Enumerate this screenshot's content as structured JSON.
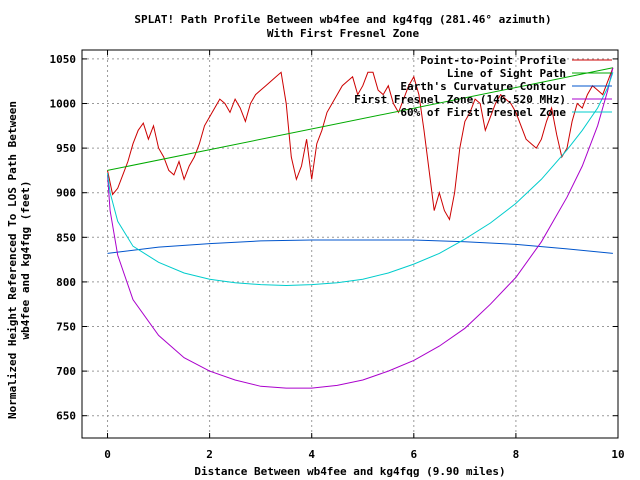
{
  "chart_data": {
    "type": "line",
    "title_line1": "SPLAT! Path Profile Between wb4fee and kg4fqg (281.46° azimuth)",
    "title_line2": "With First Fresnel Zone",
    "xlabel": "Distance Between wb4fee and kg4fqg (9.90 miles)",
    "ylabel_line1": "Normalized Height Referenced To LOS Path Between",
    "ylabel_line2": "wb4fee and kg4fqg (feet)",
    "xlim": [
      -0.5,
      10
    ],
    "ylim": [
      625,
      1060
    ],
    "x_ticks": [
      0,
      2,
      4,
      6,
      8,
      10
    ],
    "y_ticks": [
      650,
      700,
      750,
      800,
      850,
      900,
      950,
      1000,
      1050
    ],
    "grid": true,
    "legend_position": "top-right",
    "series": [
      {
        "name": "Point-to-Point Profile",
        "color": "#cc0000",
        "x": [
          0.0,
          0.1,
          0.2,
          0.3,
          0.4,
          0.5,
          0.6,
          0.7,
          0.8,
          0.9,
          1.0,
          1.1,
          1.2,
          1.3,
          1.4,
          1.5,
          1.6,
          1.7,
          1.8,
          1.9,
          2.0,
          2.1,
          2.2,
          2.3,
          2.4,
          2.5,
          2.6,
          2.7,
          2.8,
          2.9,
          3.0,
          3.1,
          3.2,
          3.3,
          3.4,
          3.5,
          3.6,
          3.7,
          3.8,
          3.9,
          4.0,
          4.1,
          4.2,
          4.3,
          4.4,
          4.5,
          4.6,
          4.7,
          4.8,
          4.9,
          5.0,
          5.1,
          5.2,
          5.3,
          5.4,
          5.5,
          5.6,
          5.7,
          5.8,
          5.9,
          6.0,
          6.1,
          6.2,
          6.3,
          6.4,
          6.5,
          6.6,
          6.7,
          6.8,
          6.9,
          7.0,
          7.1,
          7.2,
          7.3,
          7.4,
          7.5,
          7.6,
          7.7,
          7.8,
          7.9,
          8.0,
          8.1,
          8.2,
          8.3,
          8.4,
          8.5,
          8.6,
          8.7,
          8.8,
          8.9,
          9.0,
          9.1,
          9.2,
          9.3,
          9.4,
          9.5,
          9.6,
          9.7,
          9.8,
          9.9
        ],
        "y": [
          925,
          898,
          905,
          920,
          935,
          955,
          970,
          978,
          960,
          975,
          950,
          940,
          925,
          920,
          935,
          915,
          930,
          940,
          955,
          975,
          985,
          995,
          1005,
          1000,
          990,
          1005,
          995,
          980,
          1000,
          1010,
          1015,
          1020,
          1025,
          1030,
          1035,
          1000,
          940,
          915,
          930,
          960,
          915,
          955,
          970,
          990,
          1000,
          1010,
          1020,
          1025,
          1030,
          1010,
          1020,
          1035,
          1035,
          1015,
          1010,
          1020,
          1000,
          990,
          1005,
          1020,
          1030,
          1010,
          970,
          925,
          880,
          900,
          880,
          870,
          900,
          950,
          980,
          990,
          1005,
          1000,
          970,
          985,
          1000,
          1010,
          1005,
          1000,
          990,
          975,
          960,
          955,
          950,
          960,
          980,
          995,
          965,
          940,
          950,
          980,
          1000,
          995,
          1010,
          1020,
          1015,
          1010,
          1025,
          1040
        ]
      },
      {
        "name": "Line of Sight Path",
        "color": "#00aa00",
        "x": [
          0,
          9.9
        ],
        "y": [
          925,
          1040
        ]
      },
      {
        "name": "Earth's Curvature Contour",
        "color": "#0055cc",
        "x": [
          0,
          1,
          2,
          3,
          4,
          5,
          6,
          7,
          8,
          9,
          9.9
        ],
        "y": [
          832,
          839,
          843,
          846,
          847,
          847,
          847,
          845,
          842,
          837,
          832
        ]
      },
      {
        "name": "First Fresnel Zone (146.520 MHz)",
        "color": "#aa00cc",
        "x": [
          0,
          0.05,
          0.2,
          0.5,
          1,
          1.5,
          2,
          2.5,
          3,
          3.5,
          4,
          4.5,
          5,
          5.5,
          6,
          6.5,
          7,
          7.5,
          8,
          8.5,
          9,
          9.3,
          9.6,
          9.8,
          9.9
        ],
        "y": [
          920,
          880,
          830,
          780,
          740,
          715,
          700,
          690,
          683,
          681,
          681,
          684,
          690,
          700,
          712,
          728,
          748,
          775,
          805,
          845,
          895,
          930,
          975,
          1015,
          1040
        ]
      },
      {
        "name": "60% of First Fresnel Zone",
        "color": "#00cccc",
        "x": [
          0,
          0.05,
          0.2,
          0.5,
          1,
          1.5,
          2,
          2.5,
          3,
          3.5,
          4,
          4.5,
          5,
          5.5,
          6,
          6.5,
          7,
          7.5,
          8,
          8.5,
          9,
          9.3,
          9.6,
          9.8,
          9.9
        ],
        "y": [
          922,
          900,
          868,
          840,
          822,
          810,
          803,
          799,
          797,
          796,
          797,
          799,
          803,
          810,
          820,
          832,
          848,
          866,
          888,
          915,
          948,
          970,
          995,
          1018,
          1035
        ]
      }
    ]
  }
}
